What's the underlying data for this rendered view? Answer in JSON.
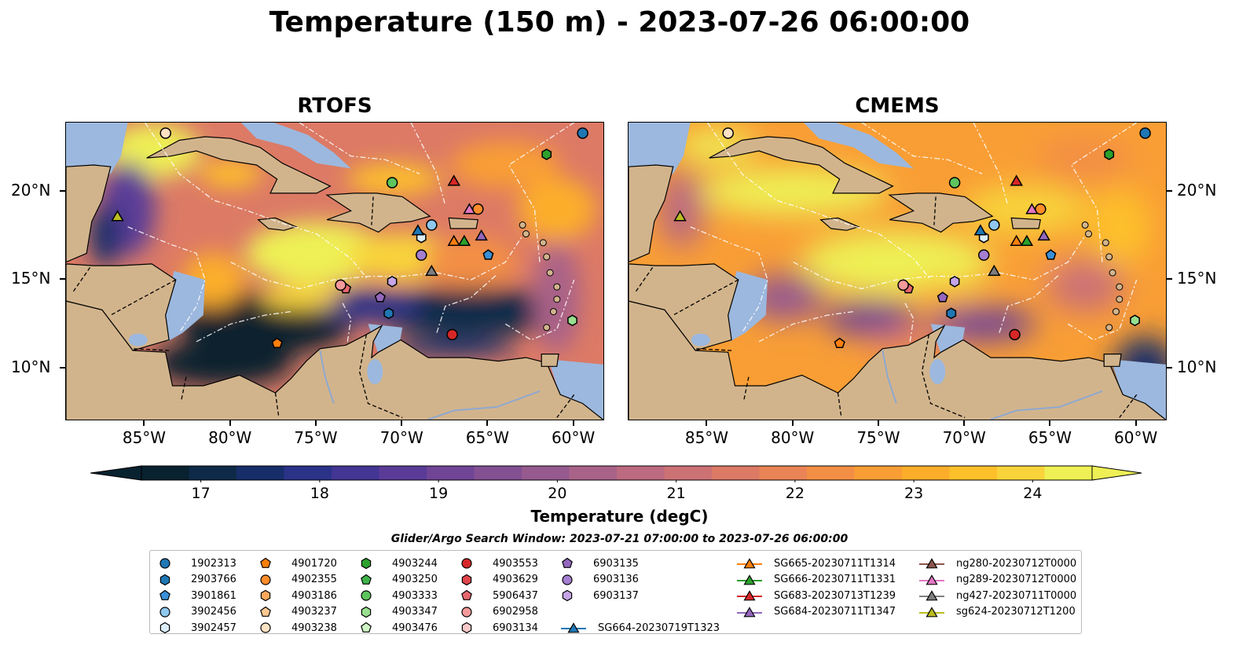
{
  "title": "Temperature (150 m) - 2023-07-26 06:00:00",
  "panels": [
    {
      "title": "RTOFS",
      "id": "rtofs"
    },
    {
      "title": "CMEMS",
      "id": "cmems"
    }
  ],
  "axes": {
    "lon_ticks": [
      "85°W",
      "80°W",
      "75°W",
      "70°W",
      "65°W",
      "60°W"
    ],
    "lon_values": [
      -85,
      -80,
      -75,
      -70,
      -65,
      -60
    ],
    "lat_ticks": [
      "20°N",
      "15°N",
      "10°N"
    ],
    "lat_values": [
      20,
      15,
      10
    ],
    "lon_range": [
      -89.6,
      -58.2
    ],
    "lat_range": [
      7.0,
      23.9
    ]
  },
  "colorbar": {
    "label": "Temperature (degC)",
    "ticks": [
      "17",
      "18",
      "19",
      "20",
      "21",
      "22",
      "23",
      "24"
    ],
    "tick_values": [
      17,
      18,
      19,
      20,
      21,
      22,
      23,
      24
    ],
    "range": [
      16.5,
      24.5
    ],
    "colors": [
      "#08222f",
      "#0f2a48",
      "#172e6a",
      "#2a3388",
      "#433694",
      "#5a3c98",
      "#704596",
      "#835092",
      "#965a8e",
      "#a96288",
      "#bc6a80",
      "#cd7274",
      "#dc7a66",
      "#ea8456",
      "#f38f45",
      "#f99e35",
      "#fcae2a",
      "#fdc02b",
      "#f8d43a",
      "#eef055"
    ]
  },
  "search_window": "Glider/Argo Search Window: 2023-07-21 07:00:00 to 2023-07-26 06:00:00",
  "legend": [
    {
      "label": "1902313",
      "shape": "circle",
      "color": "#1f77b4"
    },
    {
      "label": "2903766",
      "shape": "hexagon",
      "color": "#1f77b4"
    },
    {
      "label": "3901861",
      "shape": "pentagon",
      "color": "#3a8fd6"
    },
    {
      "label": "3902456",
      "shape": "circle",
      "color": "#8fc8ef"
    },
    {
      "label": "3902457",
      "shape": "hexagon",
      "color": "#dceefc"
    },
    {
      "label": "4901720",
      "shape": "pentagon",
      "color": "#ff7f0e"
    },
    {
      "label": "4902355",
      "shape": "circle",
      "color": "#ff8c2a"
    },
    {
      "label": "4903186",
      "shape": "hexagon",
      "color": "#ffa85c"
    },
    {
      "label": "4903237",
      "shape": "pentagon",
      "color": "#ffc891"
    },
    {
      "label": "4903238",
      "shape": "circle",
      "color": "#ffe2c4"
    },
    {
      "label": "4903244",
      "shape": "hexagon",
      "color": "#2ca02c"
    },
    {
      "label": "4903250",
      "shape": "pentagon",
      "color": "#3fb34a"
    },
    {
      "label": "4903333",
      "shape": "circle",
      "color": "#5ec45e"
    },
    {
      "label": "4903347",
      "shape": "hexagon",
      "color": "#98e08f"
    },
    {
      "label": "4903476",
      "shape": "pentagon",
      "color": "#cff5c4"
    },
    {
      "label": "4903553",
      "shape": "circle",
      "color": "#d62728"
    },
    {
      "label": "4903629",
      "shape": "hexagon",
      "color": "#e0454c"
    },
    {
      "label": "5906437",
      "shape": "pentagon",
      "color": "#e8666e"
    },
    {
      "label": "6902958",
      "shape": "circle",
      "color": "#f39a9b"
    },
    {
      "label": "6903134",
      "shape": "hexagon",
      "color": "#f8c8c8"
    },
    {
      "label": "6903135",
      "shape": "pentagon",
      "color": "#9467bd"
    },
    {
      "label": "6903136",
      "shape": "circle",
      "color": "#a57fd0"
    },
    {
      "label": "6903137",
      "shape": "hexagon",
      "color": "#c5a5e6"
    },
    {
      "label": "SG664-20230719T1323",
      "shape": "triangle-line",
      "color": "#1f77b4"
    },
    {
      "label": "SG665-20230711T1314",
      "shape": "triangle-line",
      "color": "#ff7f0e"
    },
    {
      "label": "SG666-20230711T1331",
      "shape": "triangle-line",
      "color": "#2ca02c"
    },
    {
      "label": "SG683-20230713T1239",
      "shape": "triangle-line",
      "color": "#d62728"
    },
    {
      "label": "SG684-20230711T1347",
      "shape": "triangle-line",
      "color": "#9467bd"
    },
    {
      "label": "ng280-20230712T0000",
      "shape": "triangle-line",
      "color": "#8c564b"
    },
    {
      "label": "ng289-20230712T0000",
      "shape": "triangle-line",
      "color": "#e377c2"
    },
    {
      "label": "ng427-20230711T0000",
      "shape": "triangle-line",
      "color": "#7f7f7f"
    },
    {
      "label": "sg624-20230712T1200",
      "shape": "triangle-line",
      "color": "#bcbd22"
    }
  ],
  "markers": [
    {
      "label": "1902313",
      "shape": "circle",
      "color": "#1f77b4",
      "lon": -59.5,
      "lat": 23.3
    },
    {
      "label": "3901861",
      "shape": "pentagon",
      "color": "#3a8fd6",
      "lon": -65.0,
      "lat": 16.4
    },
    {
      "label": "3902456",
      "shape": "circle",
      "color": "#8fc8ef",
      "lon": -68.3,
      "lat": 18.1
    },
    {
      "label": "3902457",
      "shape": "hexagon",
      "color": "#dceefc",
      "lon": -68.9,
      "lat": 17.4
    },
    {
      "label": "4901720",
      "shape": "pentagon",
      "color": "#ff7f0e",
      "lon": -77.3,
      "lat": 11.4
    },
    {
      "label": "4902355",
      "shape": "circle",
      "color": "#ff8c2a",
      "lon": -65.6,
      "lat": 19.0
    },
    {
      "label": "4903238",
      "shape": "circle",
      "color": "#ffe2c4",
      "lon": -83.8,
      "lat": 23.3
    },
    {
      "label": "4903244",
      "shape": "hexagon",
      "color": "#2ca02c",
      "lon": -61.6,
      "lat": 22.1
    },
    {
      "label": "4903333",
      "shape": "circle",
      "color": "#5ec45e",
      "lon": -70.6,
      "lat": 20.5
    },
    {
      "label": "4903347",
      "shape": "hexagon",
      "color": "#98e08f",
      "lon": -60.1,
      "lat": 12.7
    },
    {
      "label": "4903553",
      "shape": "circle",
      "color": "#d62728",
      "lon": -67.1,
      "lat": 11.9
    },
    {
      "label": "5906437",
      "shape": "pentagon",
      "color": "#e8666e",
      "lon": -73.3,
      "lat": 14.5
    },
    {
      "label": "6902958",
      "shape": "circle",
      "color": "#f39a9b",
      "lon": -73.6,
      "lat": 14.7
    },
    {
      "label": "6903135",
      "shape": "pentagon",
      "color": "#9467bd",
      "lon": -71.3,
      "lat": 14.0
    },
    {
      "label": "6903136",
      "shape": "circle",
      "color": "#a57fd0",
      "lon": -68.9,
      "lat": 16.4
    },
    {
      "label": "6903137",
      "shape": "hexagon",
      "color": "#c5a5e6",
      "lon": -70.6,
      "lat": 14.9
    },
    {
      "label": "2903766",
      "shape": "hexagon",
      "color": "#1f77b4",
      "lon": -70.8,
      "lat": 13.1
    },
    {
      "label": "SG664-20230719T1323",
      "shape": "triangle",
      "color": "#1f77b4",
      "lon": -69.1,
      "lat": 17.8
    },
    {
      "label": "SG665-20230711T1314",
      "shape": "triangle",
      "color": "#ff7f0e",
      "lon": -67.0,
      "lat": 17.2
    },
    {
      "label": "SG666-20230711T1331",
      "shape": "triangle",
      "color": "#2ca02c",
      "lon": -66.4,
      "lat": 17.2
    },
    {
      "label": "SG683-20230713T1239",
      "shape": "triangle",
      "color": "#d62728",
      "lon": -67.0,
      "lat": 20.6
    },
    {
      "label": "SG684-20230711T1347",
      "shape": "triangle",
      "color": "#9467bd",
      "lon": -65.4,
      "lat": 17.5
    },
    {
      "label": "ng289-20230712T0000",
      "shape": "triangle",
      "color": "#e377c2",
      "lon": -66.1,
      "lat": 19.0
    },
    {
      "label": "ng427-20230711T0000",
      "shape": "triangle",
      "color": "#7f7f7f",
      "lon": -68.3,
      "lat": 15.5
    },
    {
      "label": "sg624-20230712T1200",
      "shape": "triangle",
      "color": "#bcbd22",
      "lon": -86.6,
      "lat": 18.6
    }
  ]
}
